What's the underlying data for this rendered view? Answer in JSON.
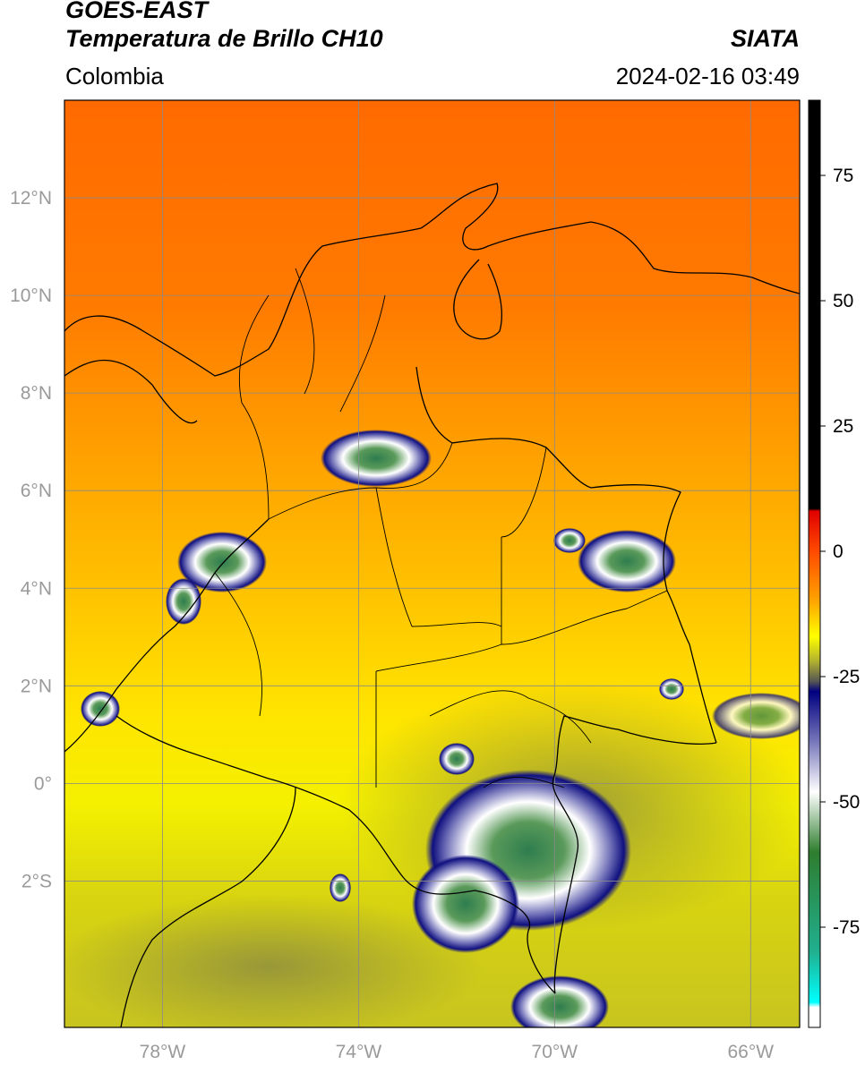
{
  "header": {
    "satellite": "GOES-EAST",
    "product": "Temperatura de Brillo CH10",
    "region": "Colombia",
    "source": "SIATA",
    "datetime": "2024-02-16 03:49"
  },
  "map": {
    "lon_range": [
      -80,
      -65
    ],
    "lat_range": [
      -5,
      14
    ],
    "lon_ticks": [
      {
        "value": -78,
        "label": "78°W"
      },
      {
        "value": -74,
        "label": "74°W"
      },
      {
        "value": -70,
        "label": "70°W"
      },
      {
        "value": -66,
        "label": "66°W"
      }
    ],
    "lat_ticks": [
      {
        "value": 12,
        "label": "12°N"
      },
      {
        "value": 10,
        "label": "10°N"
      },
      {
        "value": 8,
        "label": "8°N"
      },
      {
        "value": 6,
        "label": "6°N"
      },
      {
        "value": 4,
        "label": "4°N"
      },
      {
        "value": 2,
        "label": "2°N"
      },
      {
        "value": 0,
        "label": "0°"
      },
      {
        "value": -2,
        "label": "2°S"
      }
    ],
    "grid": true
  },
  "colorbar": {
    "range": [
      -95,
      90
    ],
    "ticks": [
      {
        "value": 75,
        "label": "75"
      },
      {
        "value": 50,
        "label": "50"
      },
      {
        "value": 25,
        "label": "25"
      },
      {
        "value": 0,
        "label": "0"
      },
      {
        "value": -25,
        "label": "-25"
      },
      {
        "value": -50,
        "label": "-50"
      },
      {
        "value": -75,
        "label": "-75"
      }
    ],
    "stops": [
      {
        "value": 90,
        "color": "#000000"
      },
      {
        "value": 8.5,
        "color": "#000000"
      },
      {
        "value": 8,
        "color": "#e00000"
      },
      {
        "value": 0,
        "color": "#ff4a00"
      },
      {
        "value": -10,
        "color": "#ffa500"
      },
      {
        "value": -17,
        "color": "#ffff00"
      },
      {
        "value": -22,
        "color": "#b0b030"
      },
      {
        "value": -26,
        "color": "#555555"
      },
      {
        "value": -28,
        "color": "#000080"
      },
      {
        "value": -38,
        "color": "#7777bb"
      },
      {
        "value": -48,
        "color": "#ffffff"
      },
      {
        "value": -60,
        "color": "#2e7d2e"
      },
      {
        "value": -80,
        "color": "#20b090"
      },
      {
        "value": -90,
        "color": "#00ffff"
      },
      {
        "value": -91,
        "color": "#ffffff"
      },
      {
        "value": -95,
        "color": "#ffffff"
      }
    ]
  }
}
